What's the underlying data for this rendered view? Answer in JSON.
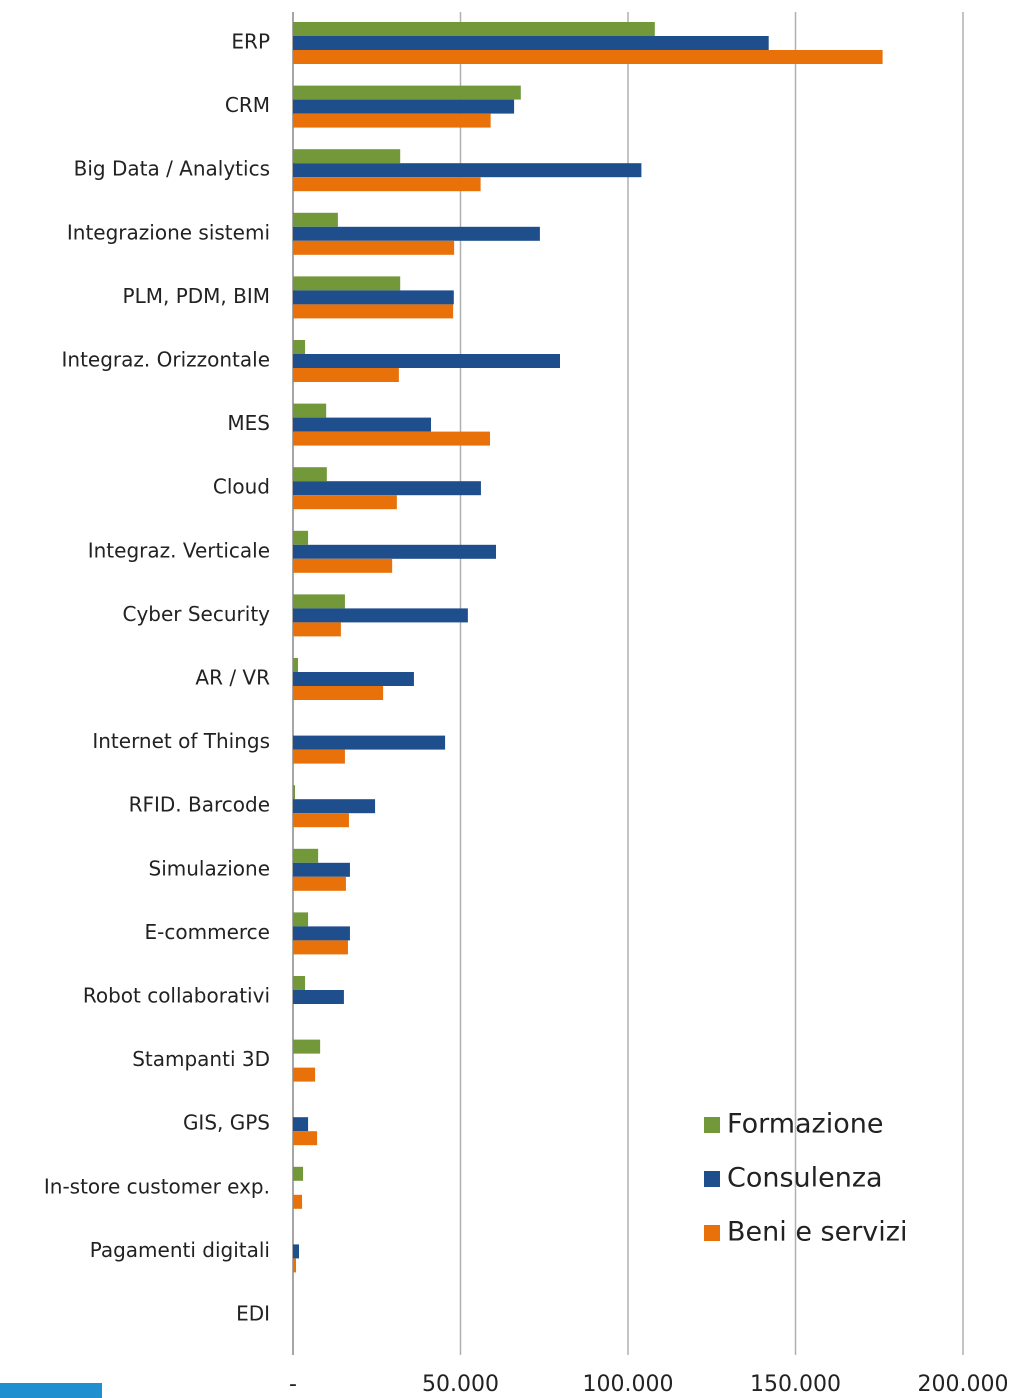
{
  "chart_data": {
    "type": "bar",
    "orientation": "horizontal",
    "categories": [
      "ERP",
      "CRM",
      "Big Data / Analytics",
      "Integrazione sistemi",
      "PLM, PDM, BIM",
      "Integraz. Orizzontale",
      "MES",
      "Cloud",
      "Integraz. Verticale",
      "Cyber Security",
      "AR / VR",
      "Internet of Things",
      "RFID. Barcode",
      "Simulazione",
      "E-commerce",
      "Robot collaborativi",
      "Stampanti 3D",
      "GIS, GPS",
      "In-store customer exp.",
      "Pagamenti digitali",
      "EDI"
    ],
    "series": [
      {
        "name": "Formazione",
        "color": "#72983a",
        "values": [
          108000,
          68000,
          32000,
          13400,
          32000,
          3600,
          9900,
          10100,
          4500,
          15500,
          1500,
          0,
          600,
          7500,
          4500,
          3600,
          8100,
          0,
          3000,
          0,
          0
        ]
      },
      {
        "name": "Consulenza",
        "color": "#1f4e8c",
        "values": [
          142000,
          66000,
          104000,
          73700,
          48000,
          79700,
          41200,
          56100,
          60600,
          52200,
          36100,
          45400,
          24500,
          17000,
          17000,
          15200,
          0,
          4500,
          0,
          1800,
          0
        ]
      },
      {
        "name": "Beni e servizi",
        "color": "#e8710a",
        "values": [
          176000,
          59000,
          56000,
          48100,
          47800,
          31600,
          58800,
          31000,
          29600,
          14300,
          26900,
          15500,
          16700,
          15800,
          16400,
          0,
          6600,
          7200,
          2700,
          900,
          0
        ]
      }
    ],
    "xlim": [
      0,
      200000
    ],
    "xticks": [
      {
        "value": 0,
        "label": "-"
      },
      {
        "value": 50000,
        "label": "50.000"
      },
      {
        "value": 100000,
        "label": "100.000"
      },
      {
        "value": 150000,
        "label": "150.000"
      },
      {
        "value": 200000,
        "label": "200.000"
      }
    ],
    "grid": true,
    "legend": "lower right"
  }
}
